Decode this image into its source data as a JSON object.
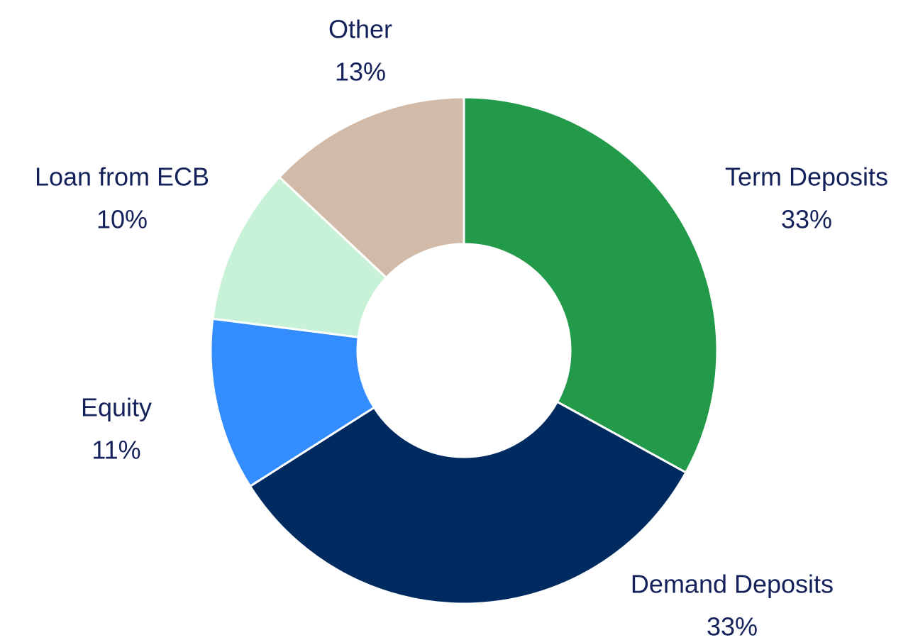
{
  "chart_data": {
    "type": "donut",
    "categories": [
      "Term Deposits",
      "Demand Deposits",
      "Equity",
      "Loan from ECB",
      "Other"
    ],
    "values": [
      33,
      33,
      11,
      10,
      13
    ],
    "value_labels": [
      "33%",
      "33%",
      "11%",
      "10%",
      "13%"
    ],
    "colors": [
      "#229a4a",
      "#002b61",
      "#338dff",
      "#c8f2d8",
      "#d1bba8"
    ]
  }
}
